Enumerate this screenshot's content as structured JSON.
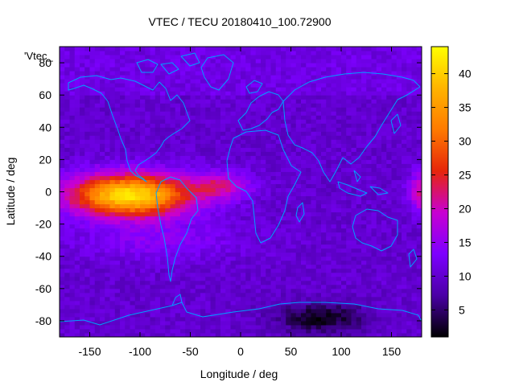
{
  "chart_data": {
    "type": "heatmap",
    "title": "VTEC / TECU 20180410_100.72900",
    "xlabel": "Longitude / deg",
    "ylabel": "Latitude / deg",
    "series_label": "'Vtec_",
    "xlim": [
      -180,
      180
    ],
    "ylim": [
      -90,
      90
    ],
    "x_ticks": [
      -150,
      -100,
      -50,
      0,
      50,
      100,
      150
    ],
    "y_ticks": [
      -80,
      -60,
      -40,
      -20,
      0,
      20,
      40,
      60,
      80
    ],
    "colorbar": {
      "range": [
        1,
        44
      ],
      "ticks": [
        5,
        10,
        15,
        20,
        25,
        30,
        35,
        40
      ],
      "palette": [
        "#000000",
        "#4a00a6",
        "#7d00ff",
        "#c800d2",
        "#e6260a",
        "#ff7a00",
        "#ffb400",
        "#ffff00"
      ]
    },
    "grid_resolution_deg": [
      5,
      2.5
    ],
    "anomaly": {
      "center_longitude": -110,
      "center_latitude": -2,
      "peak_vtec": 43,
      "min_vtec": 1
    },
    "grid": false,
    "coastline_color": "#00a0ff"
  }
}
